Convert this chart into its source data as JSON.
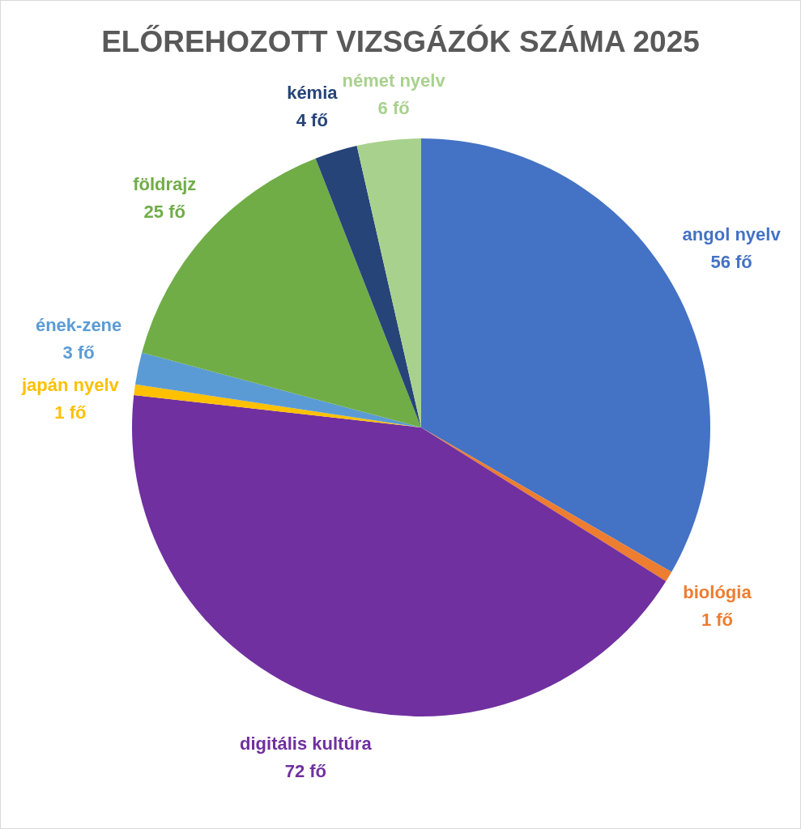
{
  "chart_data": {
    "type": "pie",
    "title": "ELŐREHOZOTT VIZSGÁZÓK SZÁMA 2025",
    "categories": [
      "angol nyelv",
      "biológia",
      "digitális kultúra",
      "japán nyelv",
      "ének-zene",
      "földrajz",
      "kémia",
      "német nyelv"
    ],
    "values": [
      56,
      1,
      72,
      1,
      3,
      25,
      4,
      6
    ],
    "value_labels": [
      "56 fő",
      "1 fő",
      "72 fő",
      "1 fő",
      "3 fő",
      "25 fő",
      "4 fő",
      "6 fő"
    ],
    "colors": [
      "#4472c4",
      "#ed7d31",
      "#7030a0",
      "#ffc000",
      "#5b9bd5",
      "#70ad47",
      "#264478",
      "#a9d18e"
    ],
    "legend": false
  }
}
